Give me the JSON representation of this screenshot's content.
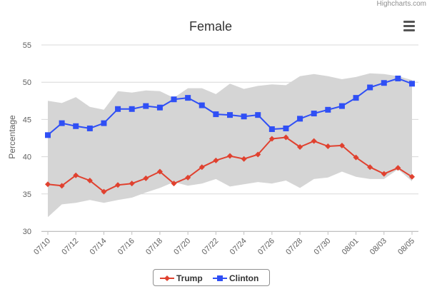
{
  "credits": "Highcharts.com",
  "menu": {
    "icon": "hamburger-menu-icon"
  },
  "colors": {
    "trump": "#e0412f",
    "clinton": "#2f4ff5",
    "band": "#d5d5d5",
    "grid": "#d8d8d8",
    "axis_text": "#606060"
  },
  "chart_data": {
    "type": "line",
    "title": "Female",
    "ylabel": "Percentage",
    "xlabel": "",
    "ylim": [
      30,
      55
    ],
    "yticks": [
      30,
      35,
      40,
      45,
      50,
      55
    ],
    "grid": true,
    "legend_position": "bottom-center",
    "x": [
      "07/10",
      "07/11",
      "07/12",
      "07/13",
      "07/14",
      "07/15",
      "07/16",
      "07/17",
      "07/18",
      "07/19",
      "07/20",
      "07/21",
      "07/22",
      "07/23",
      "07/24",
      "07/25",
      "07/26",
      "07/27",
      "07/28",
      "07/29",
      "07/30",
      "07/31",
      "08/01",
      "08/02",
      "08/03",
      "08/04",
      "08/05"
    ],
    "xtick_labels": [
      "07/10",
      "07/12",
      "07/14",
      "07/16",
      "07/18",
      "07/20",
      "07/22",
      "07/24",
      "07/26",
      "07/28",
      "07/30",
      "08/01",
      "08/03",
      "08/05"
    ],
    "band": {
      "upper": [
        47.5,
        47.2,
        48.0,
        46.7,
        46.3,
        48.8,
        48.6,
        48.9,
        48.8,
        47.9,
        49.2,
        49.2,
        48.4,
        49.8,
        49.1,
        49.5,
        49.7,
        49.6,
        50.8,
        51.1,
        50.8,
        50.4,
        50.7,
        51.2,
        51.1,
        50.8,
        50.3
      ],
      "lower": [
        31.9,
        33.6,
        33.8,
        34.2,
        33.8,
        34.2,
        34.5,
        35.2,
        35.8,
        36.6,
        36.1,
        36.4,
        37.0,
        36.0,
        36.3,
        36.6,
        36.4,
        36.8,
        35.8,
        37.0,
        37.2,
        38.0,
        37.3,
        37.0,
        37.0,
        38.3,
        36.7
      ]
    },
    "series": [
      {
        "name": "Trump",
        "marker": "diamond",
        "values": [
          36.3,
          36.1,
          37.5,
          36.8,
          35.3,
          36.2,
          36.4,
          37.1,
          38.0,
          36.4,
          37.2,
          38.6,
          39.5,
          40.1,
          39.7,
          40.3,
          42.4,
          42.6,
          41.3,
          42.1,
          41.4,
          41.5,
          39.9,
          38.6,
          37.7,
          38.5,
          37.3
        ]
      },
      {
        "name": "Clinton",
        "marker": "square",
        "values": [
          42.9,
          44.5,
          44.1,
          43.8,
          44.5,
          46.4,
          46.4,
          46.8,
          46.6,
          47.7,
          47.9,
          46.9,
          45.7,
          45.6,
          45.4,
          45.6,
          43.7,
          43.8,
          45.1,
          45.8,
          46.3,
          46.8,
          47.9,
          49.3,
          49.9,
          50.5,
          49.8
        ]
      }
    ]
  }
}
